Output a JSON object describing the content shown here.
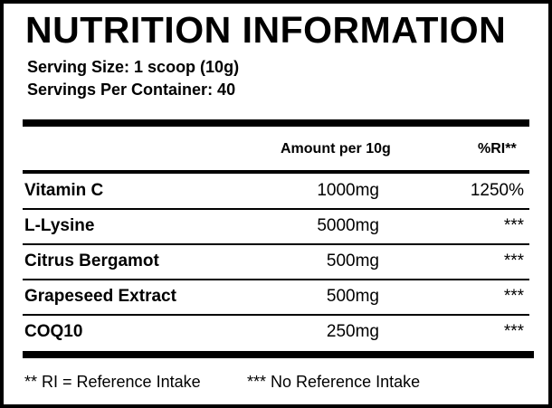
{
  "title": "NUTRITION INFORMATION",
  "serving_size": "Serving Size: 1 scoop (10g)",
  "servings_per_container": "Servings Per Container: 40",
  "table": {
    "headers": {
      "amount": "Amount per 10g",
      "ri": "%RI**"
    },
    "rows": [
      {
        "name": "Vitamin C",
        "amount": "1000mg",
        "ri": "1250%"
      },
      {
        "name": "L-Lysine",
        "amount": "5000mg",
        "ri": "***"
      },
      {
        "name": "Citrus Bergamot",
        "amount": "500mg",
        "ri": "***"
      },
      {
        "name": "Grapeseed Extract",
        "amount": "500mg",
        "ri": "***"
      },
      {
        "name": "COQ10",
        "amount": "250mg",
        "ri": "***"
      }
    ]
  },
  "footnotes": {
    "ri": "** RI = Reference Intake",
    "no_ri": "*** No Reference Intake"
  }
}
